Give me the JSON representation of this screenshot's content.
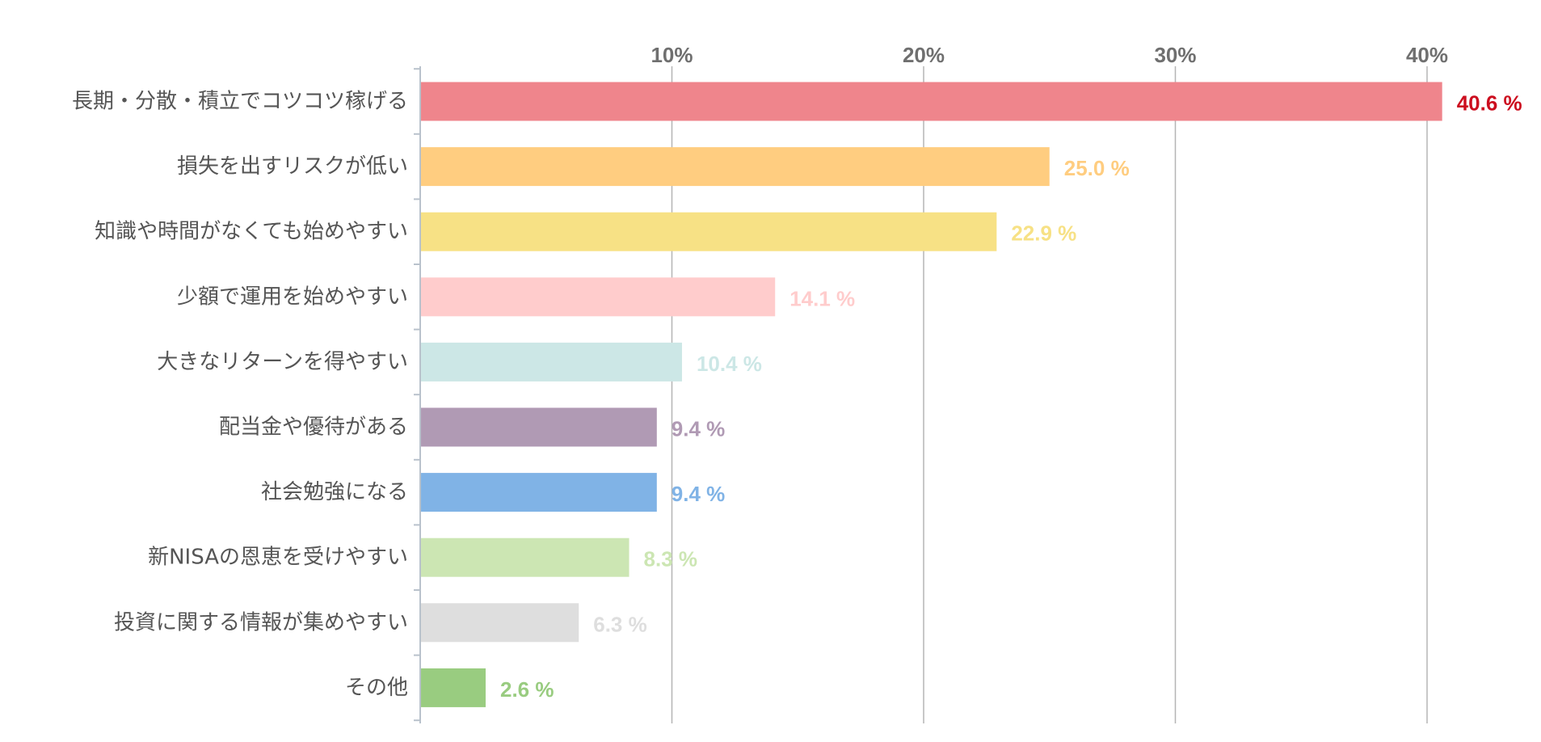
{
  "chart_data": {
    "type": "bar",
    "orientation": "horizontal",
    "title": "",
    "xlabel": "",
    "ylabel": "",
    "xlim": [
      0,
      42.5
    ],
    "tick_values": [
      10,
      20,
      30,
      40
    ],
    "tick_labels": [
      "10%",
      "20%",
      "30%",
      "40%"
    ],
    "grid": true,
    "categories": [
      "長期・分散・積立でコツコツ稼げる",
      "損失を出すリスクが低い",
      "知識や時間がなくても始めやすい",
      "少額で運用を始めやすい",
      "大きなリターンを得やすい",
      "配当金や優待がある",
      "社会勉強になる",
      "新NISAの恩恵を受けやすい",
      "投資に関する情報が集めやすい",
      "その他"
    ],
    "values": [
      40.6,
      25.0,
      22.9,
      14.1,
      10.4,
      9.4,
      9.4,
      8.3,
      6.3,
      2.6
    ],
    "value_labels": [
      "40.6 %",
      "25.0 %",
      "22.9 %",
      "14.1 %",
      "10.4 %",
      "9.4 %",
      "9.4 %",
      "8.3 %",
      "6.3 %",
      "2.6 %"
    ],
    "bar_colors": [
      "#ef858c",
      "#ffcd80",
      "#f7e185",
      "#ffcccc",
      "#cce7e6",
      "#b09ab4",
      "#80b3e6",
      "#cce6b3",
      "#dedede",
      "#99cc80"
    ],
    "label_colors": [
      "#cc0e1f",
      "#ffcd80",
      "#f7e185",
      "#ffcccc",
      "#cce7e6",
      "#b09ab4",
      "#80b3e6",
      "#cce6b3",
      "#dedede",
      "#99cc80"
    ],
    "colors": {
      "grid": "#b5b5b5",
      "axis": "#b9c2cc",
      "tick_text": "#6f6f6f",
      "category_text": "#555555"
    }
  }
}
